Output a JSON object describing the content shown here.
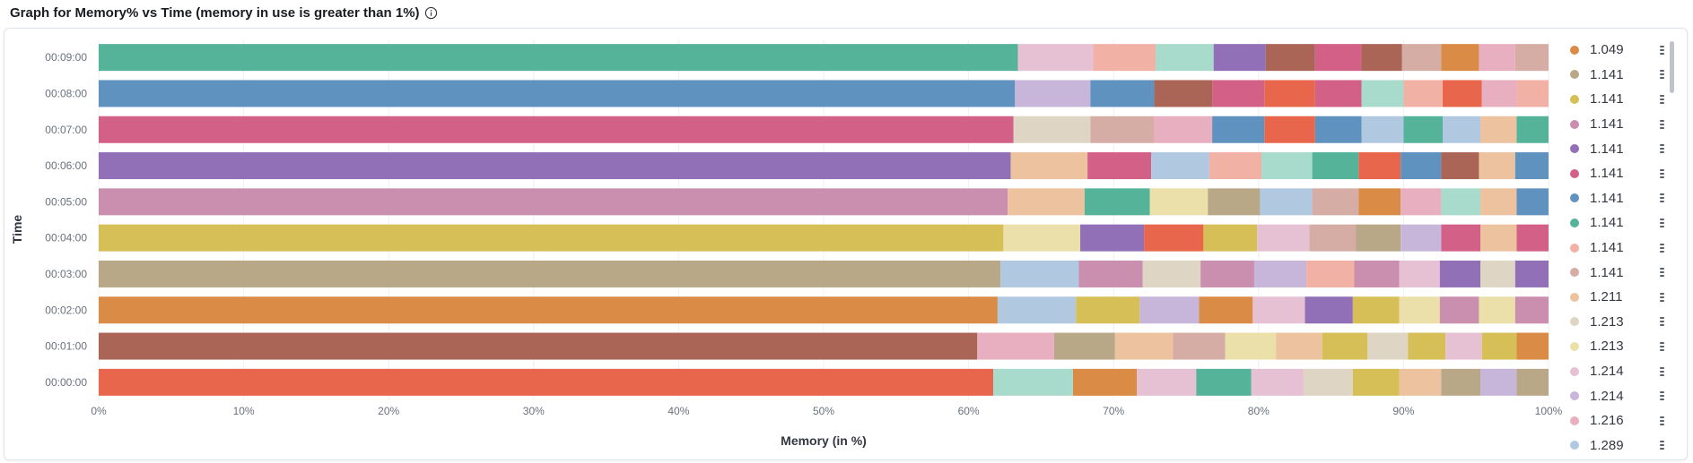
{
  "panel": {
    "title": "Graph for Memory% vs Time (memory in use is greater than 1%)",
    "info_icon": "info-circle-icon"
  },
  "legend": {
    "values": [
      "1.049",
      "1.141",
      "1.141",
      "1.141",
      "1.141",
      "1.141",
      "1.141",
      "1.141",
      "1.141",
      "1.141",
      "1.211",
      "1.213",
      "1.213",
      "1.214",
      "1.214",
      "1.216",
      "1.289"
    ],
    "colors": [
      "#da8b45",
      "#b9a888",
      "#d6bf57",
      "#ca8eae",
      "#9170b8",
      "#d36086",
      "#6092c0",
      "#54b399",
      "#f1b1a4",
      "#d6ada4",
      "#ecc29f",
      "#dfd5c5",
      "#ebdfaa",
      "#e6c1d3",
      "#c8b5da",
      "#e8afc0",
      "#b0c9e0"
    ],
    "menu_icon": "vertical-dots-icon"
  },
  "chart_data": {
    "type": "bar",
    "orientation": "horizontal",
    "stacked": true,
    "title": "",
    "xlabel": "Memory (in %)",
    "ylabel": "Time",
    "xlim": [
      0,
      100
    ],
    "x_ticks": [
      "0%",
      "10%",
      "20%",
      "30%",
      "40%",
      "50%",
      "60%",
      "70%",
      "80%",
      "90%",
      "100%"
    ],
    "categories": [
      "00:00:00",
      "00:01:00",
      "00:02:00",
      "00:03:00",
      "00:04:00",
      "00:05:00",
      "00:06:00",
      "00:07:00",
      "00:08:00",
      "00:09:00"
    ],
    "grid": true,
    "legend_position": "right",
    "rows": [
      {
        "time": "00:00:00",
        "segments": [
          {
            "value": 61.7,
            "color": "#e7664c"
          },
          {
            "value": 5.5,
            "color": "#a9dbcc"
          },
          {
            "value": 4.4,
            "color": "#da8b45"
          },
          {
            "value": 4.1,
            "color": "#e6c1d3"
          },
          {
            "value": 3.8,
            "color": "#54b399"
          },
          {
            "value": 3.6,
            "color": "#e6c1d3"
          },
          {
            "value": 3.4,
            "color": "#dfd5c5"
          },
          {
            "value": 3.2,
            "color": "#d6bf57"
          },
          {
            "value": 2.9,
            "color": "#ecc29f"
          },
          {
            "value": 2.7,
            "color": "#b9a888"
          },
          {
            "value": 2.5,
            "color": "#c8b5da"
          },
          {
            "value": 2.2,
            "color": "#b9a888"
          }
        ]
      },
      {
        "time": "00:01:00",
        "segments": [
          {
            "value": 60.6,
            "color": "#aa6556"
          },
          {
            "value": 5.3,
            "color": "#e8afc0"
          },
          {
            "value": 4.2,
            "color": "#b9a888"
          },
          {
            "value": 4.0,
            "color": "#ecc29f"
          },
          {
            "value": 3.6,
            "color": "#d6ada4"
          },
          {
            "value": 3.5,
            "color": "#ebdfaa"
          },
          {
            "value": 3.2,
            "color": "#ecc29f"
          },
          {
            "value": 3.1,
            "color": "#d6bf57"
          },
          {
            "value": 2.8,
            "color": "#dfd5c5"
          },
          {
            "value": 2.6,
            "color": "#d6bf57"
          },
          {
            "value": 2.5,
            "color": "#e6c1d3"
          },
          {
            "value": 2.4,
            "color": "#d6bf57"
          },
          {
            "value": 2.2,
            "color": "#da8b45"
          }
        ]
      },
      {
        "time": "00:02:00",
        "segments": [
          {
            "value": 62.0,
            "color": "#da8b45"
          },
          {
            "value": 5.4,
            "color": "#b0c9e0"
          },
          {
            "value": 4.4,
            "color": "#d6bf57"
          },
          {
            "value": 4.1,
            "color": "#c8b5da"
          },
          {
            "value": 3.7,
            "color": "#da8b45"
          },
          {
            "value": 3.6,
            "color": "#e6c1d3"
          },
          {
            "value": 3.3,
            "color": "#9170b8"
          },
          {
            "value": 3.2,
            "color": "#d6bf57"
          },
          {
            "value": 2.8,
            "color": "#ebdfaa"
          },
          {
            "value": 2.7,
            "color": "#ca8eae"
          },
          {
            "value": 2.5,
            "color": "#ebdfaa"
          },
          {
            "value": 2.3,
            "color": "#ca8eae"
          }
        ]
      },
      {
        "time": "00:03:00",
        "segments": [
          {
            "value": 62.2,
            "color": "#b9a888"
          },
          {
            "value": 5.4,
            "color": "#b0c9e0"
          },
          {
            "value": 4.4,
            "color": "#ca8eae"
          },
          {
            "value": 4.0,
            "color": "#dfd5c5"
          },
          {
            "value": 3.7,
            "color": "#ca8eae"
          },
          {
            "value": 3.6,
            "color": "#c8b5da"
          },
          {
            "value": 3.3,
            "color": "#f1b1a4"
          },
          {
            "value": 3.1,
            "color": "#ca8eae"
          },
          {
            "value": 2.8,
            "color": "#e6c1d3"
          },
          {
            "value": 2.8,
            "color": "#9170b8"
          },
          {
            "value": 2.4,
            "color": "#dfd5c5"
          },
          {
            "value": 2.3,
            "color": "#9170b8"
          }
        ]
      },
      {
        "time": "00:04:00",
        "segments": [
          {
            "value": 62.4,
            "color": "#d6bf57"
          },
          {
            "value": 5.3,
            "color": "#ebdfaa"
          },
          {
            "value": 4.4,
            "color": "#9170b8"
          },
          {
            "value": 4.1,
            "color": "#e7664c"
          },
          {
            "value": 3.7,
            "color": "#d6bf57"
          },
          {
            "value": 3.6,
            "color": "#e6c1d3"
          },
          {
            "value": 3.2,
            "color": "#d6ada4"
          },
          {
            "value": 3.1,
            "color": "#b9a888"
          },
          {
            "value": 2.8,
            "color": "#c8b5da"
          },
          {
            "value": 2.7,
            "color": "#d36086"
          },
          {
            "value": 2.5,
            "color": "#ecc29f"
          },
          {
            "value": 2.2,
            "color": "#d36086"
          }
        ]
      },
      {
        "time": "00:05:00",
        "segments": [
          {
            "value": 62.7,
            "color": "#ca8eae"
          },
          {
            "value": 5.3,
            "color": "#ecc29f"
          },
          {
            "value": 4.5,
            "color": "#54b399"
          },
          {
            "value": 4.0,
            "color": "#ebdfaa"
          },
          {
            "value": 3.6,
            "color": "#b9a888"
          },
          {
            "value": 3.6,
            "color": "#b0c9e0"
          },
          {
            "value": 3.2,
            "color": "#d6ada4"
          },
          {
            "value": 2.9,
            "color": "#da8b45"
          },
          {
            "value": 2.8,
            "color": "#e8afc0"
          },
          {
            "value": 2.7,
            "color": "#a9dbcc"
          },
          {
            "value": 2.5,
            "color": "#ecc29f"
          },
          {
            "value": 2.3,
            "color": "#6092c0"
          }
        ]
      },
      {
        "time": "00:06:00",
        "segments": [
          {
            "value": 62.9,
            "color": "#9170b8"
          },
          {
            "value": 5.3,
            "color": "#ecc29f"
          },
          {
            "value": 4.4,
            "color": "#d36086"
          },
          {
            "value": 4.0,
            "color": "#b0c9e0"
          },
          {
            "value": 3.6,
            "color": "#f1b1a4"
          },
          {
            "value": 3.5,
            "color": "#a9dbcc"
          },
          {
            "value": 3.2,
            "color": "#54b399"
          },
          {
            "value": 2.9,
            "color": "#e7664c"
          },
          {
            "value": 2.8,
            "color": "#6092c0"
          },
          {
            "value": 2.6,
            "color": "#aa6556"
          },
          {
            "value": 2.5,
            "color": "#ecc29f"
          },
          {
            "value": 2.3,
            "color": "#6092c0"
          }
        ]
      },
      {
        "time": "00:07:00",
        "segments": [
          {
            "value": 63.1,
            "color": "#d36086"
          },
          {
            "value": 5.3,
            "color": "#dfd5c5"
          },
          {
            "value": 4.4,
            "color": "#d6ada4"
          },
          {
            "value": 4.0,
            "color": "#e8afc0"
          },
          {
            "value": 3.6,
            "color": "#6092c0"
          },
          {
            "value": 3.5,
            "color": "#e7664c"
          },
          {
            "value": 3.2,
            "color": "#6092c0"
          },
          {
            "value": 2.9,
            "color": "#b0c9e0"
          },
          {
            "value": 2.7,
            "color": "#54b399"
          },
          {
            "value": 2.6,
            "color": "#b0c9e0"
          },
          {
            "value": 2.5,
            "color": "#ecc29f"
          },
          {
            "value": 2.2,
            "color": "#54b399"
          }
        ]
      },
      {
        "time": "00:08:00",
        "segments": [
          {
            "value": 63.2,
            "color": "#6092c0"
          },
          {
            "value": 5.2,
            "color": "#c8b5da"
          },
          {
            "value": 4.4,
            "color": "#6092c0"
          },
          {
            "value": 4.0,
            "color": "#aa6556"
          },
          {
            "value": 3.6,
            "color": "#d36086"
          },
          {
            "value": 3.5,
            "color": "#e7664c"
          },
          {
            "value": 3.2,
            "color": "#d36086"
          },
          {
            "value": 2.9,
            "color": "#a9dbcc"
          },
          {
            "value": 2.7,
            "color": "#f1b1a4"
          },
          {
            "value": 2.7,
            "color": "#e7664c"
          },
          {
            "value": 2.4,
            "color": "#e8afc0"
          },
          {
            "value": 2.2,
            "color": "#f1b1a4"
          }
        ]
      },
      {
        "time": "00:09:00",
        "segments": [
          {
            "value": 63.4,
            "color": "#54b399"
          },
          {
            "value": 5.2,
            "color": "#e6c1d3"
          },
          {
            "value": 4.3,
            "color": "#f1b1a4"
          },
          {
            "value": 4.0,
            "color": "#a9dbcc"
          },
          {
            "value": 3.6,
            "color": "#9170b8"
          },
          {
            "value": 3.4,
            "color": "#aa6556"
          },
          {
            "value": 3.2,
            "color": "#d36086"
          },
          {
            "value": 2.8,
            "color": "#aa6556"
          },
          {
            "value": 2.7,
            "color": "#d6ada4"
          },
          {
            "value": 2.6,
            "color": "#da8b45"
          },
          {
            "value": 2.5,
            "color": "#e8afc0"
          },
          {
            "value": 2.3,
            "color": "#d6ada4"
          }
        ]
      }
    ]
  }
}
